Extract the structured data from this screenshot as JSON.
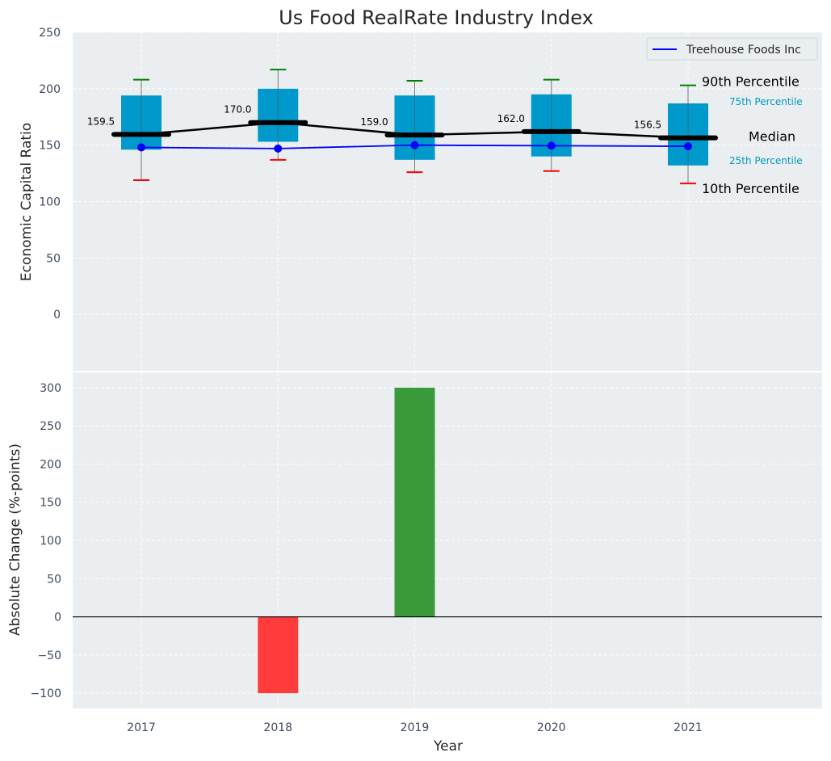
{
  "chart_data": [
    {
      "type": "box",
      "title": "Us Food RealRate Industry Index",
      "ylabel": "Economic Capital Ratio",
      "ylim": [
        -50,
        250
      ],
      "yticks": [
        0,
        50,
        100,
        150,
        200,
        250
      ],
      "categories": [
        "2017",
        "2018",
        "2019",
        "2020",
        "2021"
      ],
      "boxes": [
        {
          "year": "2017",
          "p10": 119,
          "p25": 146,
          "median": 159.5,
          "p75": 194,
          "p90": 208
        },
        {
          "year": "2018",
          "p10": 137,
          "p25": 153,
          "median": 170.0,
          "p75": 200,
          "p90": 217
        },
        {
          "year": "2019",
          "p10": 126,
          "p25": 137,
          "median": 159.0,
          "p75": 194,
          "p90": 207
        },
        {
          "year": "2020",
          "p10": 127,
          "p25": 140,
          "median": 162.0,
          "p75": 195,
          "p90": 208
        },
        {
          "year": "2021",
          "p10": 116,
          "p25": 132,
          "median": 156.5,
          "p75": 187,
          "p90": 203
        }
      ],
      "median_labels": [
        "159.5",
        "170.0",
        "159.0",
        "162.0",
        "156.5"
      ],
      "series": [
        {
          "name": "Treehouse Foods Inc",
          "values": [
            148,
            147,
            150,
            149.5,
            149
          ],
          "color": "#0000ff"
        }
      ],
      "legend": {
        "position": "top-right",
        "entries": [
          "Treehouse Foods Inc"
        ]
      },
      "annotations": {
        "p90": "90th Percentile",
        "p75": "75th Percentile",
        "median": "Median",
        "p25": "25th Percentile",
        "p10": "10th Percentile"
      },
      "colors": {
        "box": "#0099cc",
        "median_line": "#000000",
        "p90_cap": "#008000",
        "p10_cap": "#ff0000",
        "background": "#eaeef0",
        "annotation_blue": "#0099bb"
      },
      "grid": true
    },
    {
      "type": "bar",
      "xlabel": "Year",
      "ylabel": "Absolute Change (%-points)",
      "ylim": [
        -120,
        320
      ],
      "yticks": [
        -100,
        -50,
        0,
        50,
        100,
        150,
        200,
        250,
        300
      ],
      "categories": [
        "2017",
        "2018",
        "2019",
        "2020",
        "2021"
      ],
      "values": [
        0,
        -100,
        300,
        0,
        0
      ],
      "colors": {
        "positive": "#3a9a3a",
        "negative": "#ff3b3b"
      },
      "grid": true
    }
  ]
}
